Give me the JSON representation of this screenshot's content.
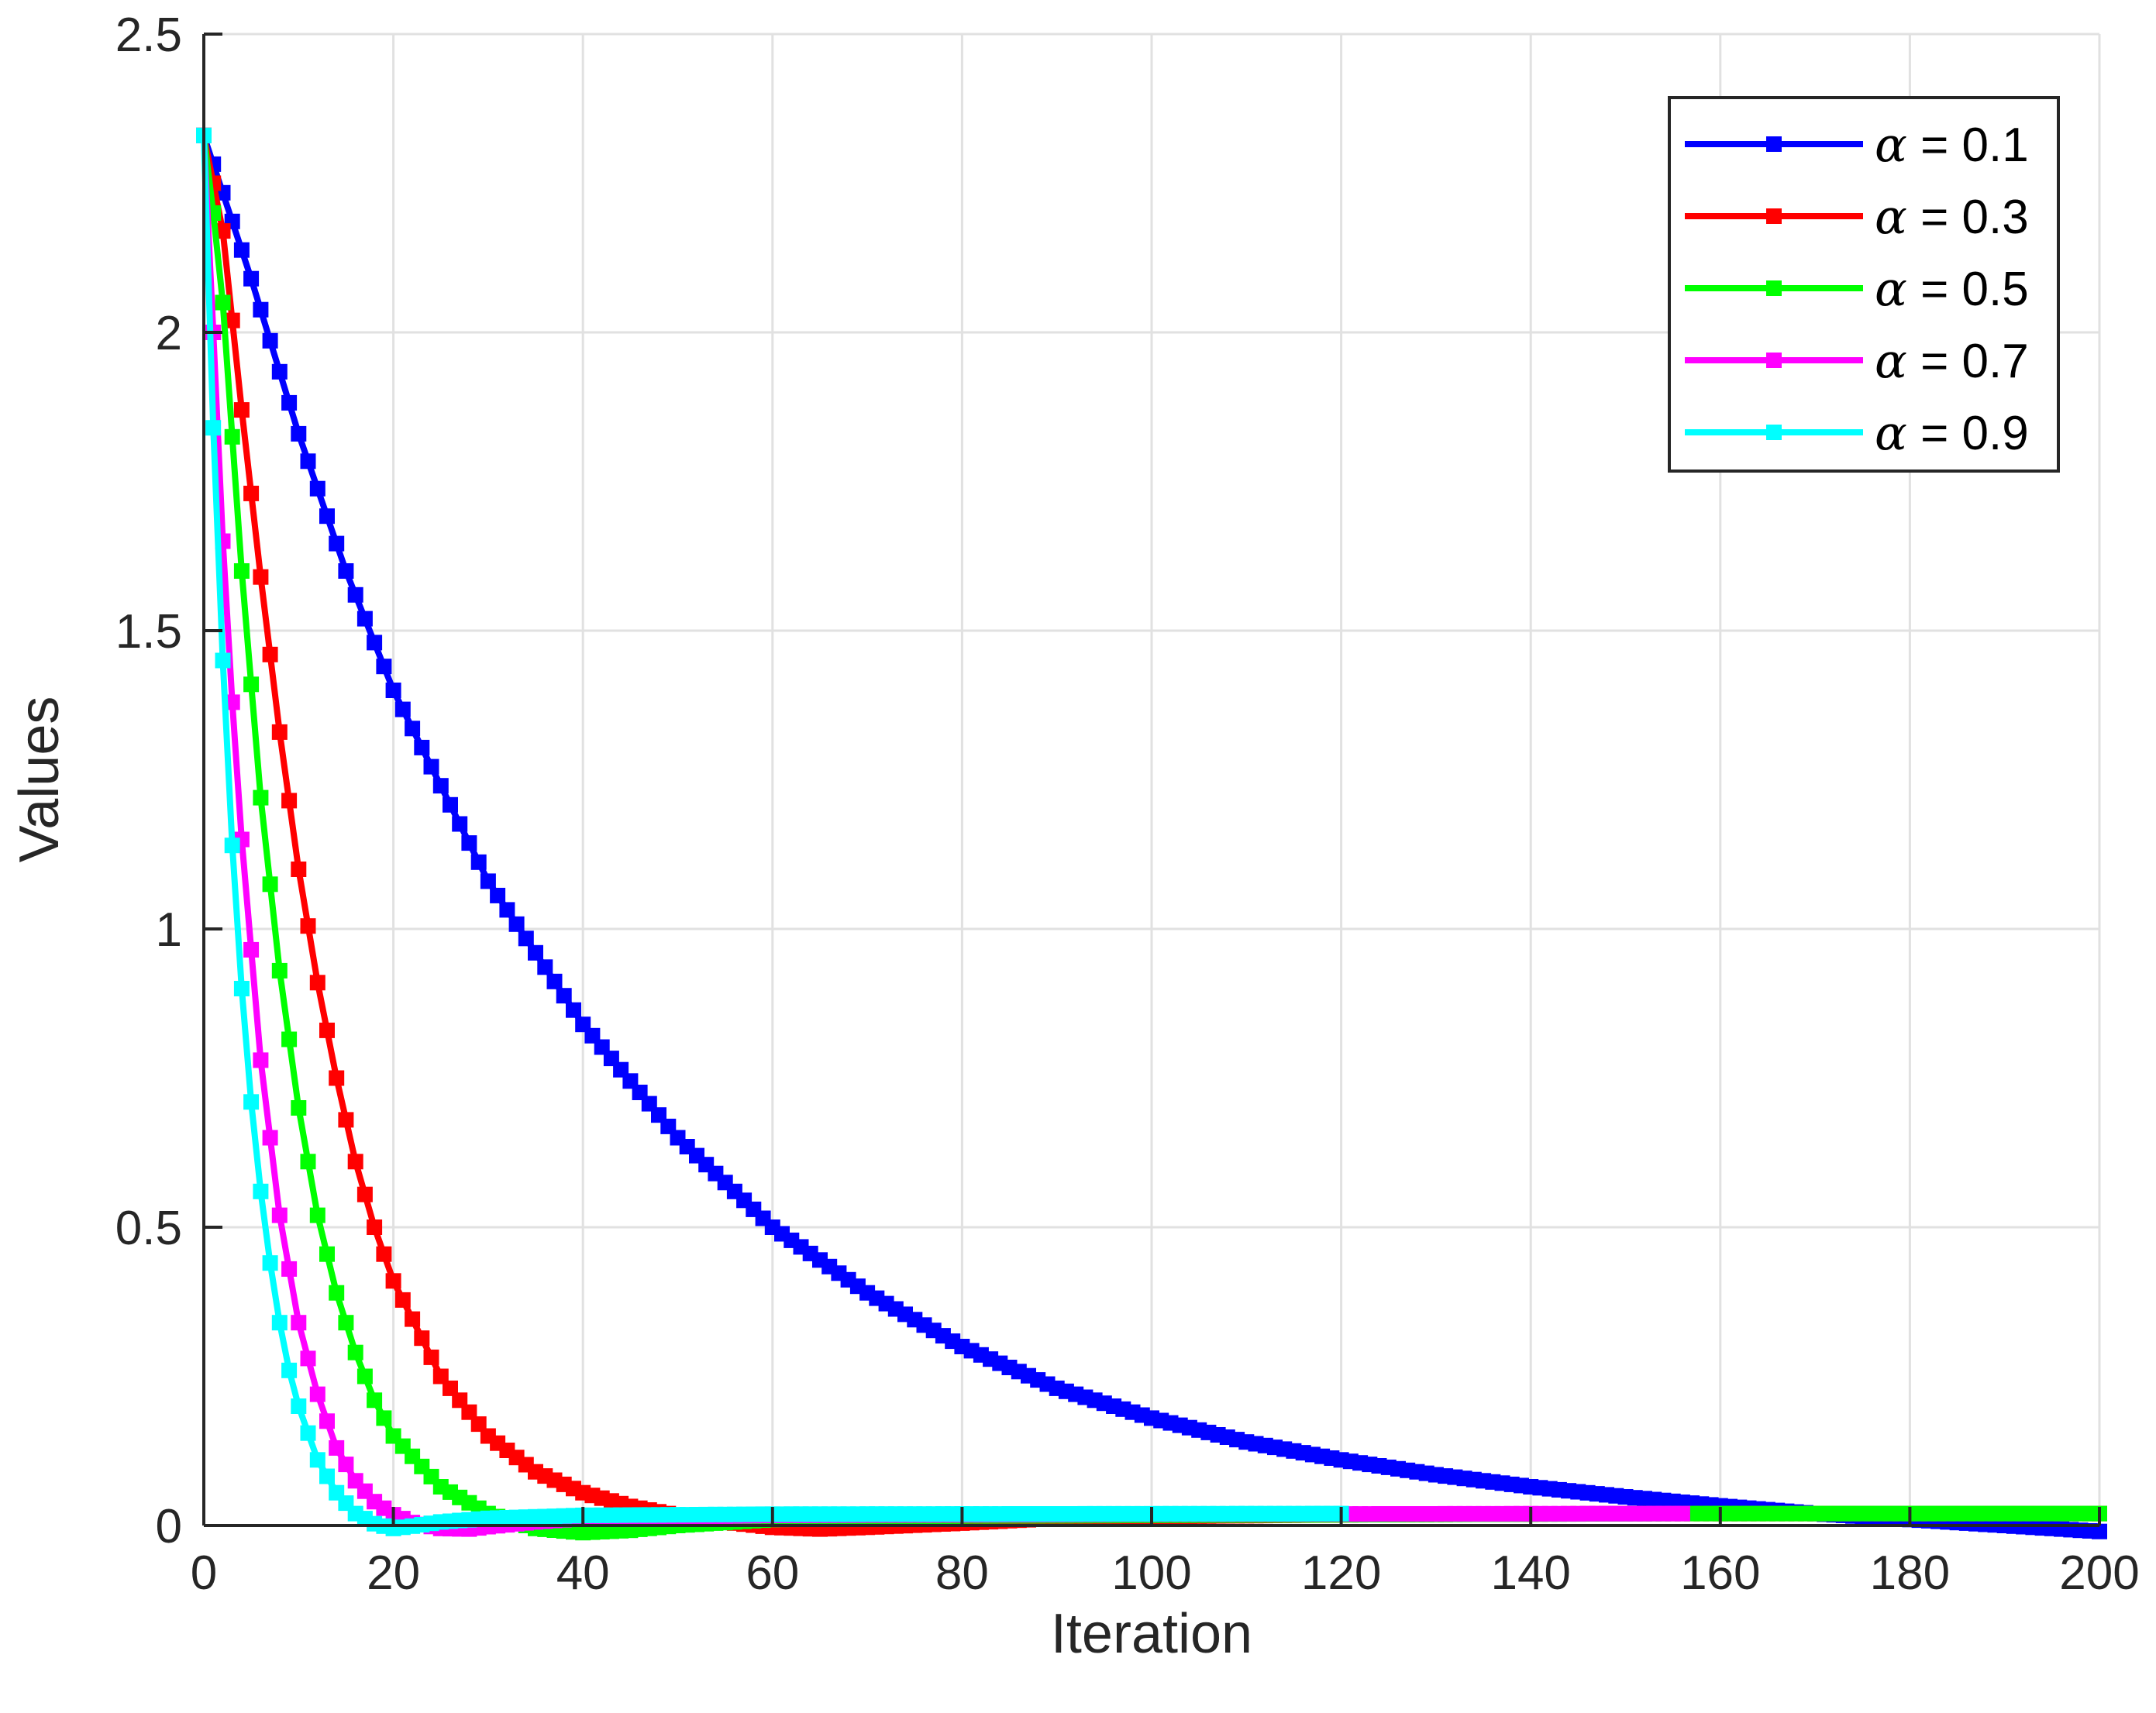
{
  "chart_data": {
    "type": "line",
    "title": "",
    "xlabel": "Iteration",
    "ylabel": "Values",
    "xlim": [
      0,
      200
    ],
    "ylim": [
      0,
      2.5
    ],
    "xticks": [
      0,
      20,
      40,
      60,
      80,
      100,
      120,
      140,
      160,
      180,
      200
    ],
    "xtick_labels": [
      "0",
      "20",
      "40",
      "60",
      "80",
      "100",
      "120",
      "140",
      "160",
      "180",
      "200"
    ],
    "yticks": [
      0,
      0.5,
      1,
      1.5,
      2,
      2.5
    ],
    "ytick_labels": [
      "0",
      "0.5",
      "1",
      "1.5",
      "2",
      "2.5"
    ],
    "grid": true,
    "legend_position": "top-right",
    "series": [
      {
        "name": "α = 0.1",
        "symbol": "α",
        "label_suffix": " = 0.1",
        "color": "#0000ff",
        "marker": "square",
        "x": [
          0,
          5,
          10,
          15,
          20,
          30,
          40,
          50,
          60,
          70,
          80,
          90,
          100,
          110,
          120,
          130,
          140,
          150,
          160,
          170,
          180,
          190,
          200
        ],
        "y": [
          2.33,
          2.09,
          1.83,
          1.6,
          1.4,
          1.08,
          0.84,
          0.65,
          0.5,
          0.39,
          0.3,
          0.23,
          0.18,
          0.14,
          0.11,
          0.085,
          0.065,
          0.048,
          0.033,
          0.02,
          0.01,
          0.0,
          -0.01
        ]
      },
      {
        "name": "α = 0.3",
        "symbol": "α",
        "label_suffix": " = 0.3",
        "color": "#ff0000",
        "marker": "square",
        "x": [
          0,
          2,
          4,
          6,
          8,
          10,
          12,
          14,
          16,
          18,
          20,
          25,
          30,
          35,
          40,
          45,
          50,
          55,
          60,
          65,
          70,
          80,
          90,
          100,
          120,
          150,
          200
        ],
        "y": [
          2.33,
          2.17,
          1.87,
          1.59,
          1.33,
          1.1,
          0.91,
          0.75,
          0.61,
          0.5,
          0.41,
          0.25,
          0.15,
          0.09,
          0.055,
          0.032,
          0.017,
          0.006,
          -0.003,
          -0.006,
          -0.003,
          0.004,
          0.012,
          0.015,
          0.018,
          0.02,
          0.02
        ]
      },
      {
        "name": "α = 0.5",
        "symbol": "α",
        "label_suffix": " = 0.5",
        "color": "#00ff00",
        "marker": "square",
        "x": [
          0,
          1,
          2,
          4,
          6,
          8,
          10,
          12,
          14,
          16,
          18,
          20,
          25,
          30,
          35,
          40,
          45,
          50,
          60,
          80,
          120,
          156,
          200
        ],
        "y": [
          2.33,
          2.2,
          2.05,
          1.6,
          1.22,
          0.93,
          0.7,
          0.52,
          0.39,
          0.29,
          0.21,
          0.15,
          0.065,
          0.02,
          -0.005,
          -0.012,
          -0.008,
          0.0,
          0.01,
          0.016,
          0.018,
          0.02,
          0.02
        ]
      },
      {
        "name": "α = 0.7",
        "symbol": "α",
        "label_suffix": " = 0.7",
        "color": "#ff00ff",
        "marker": "square",
        "x": [
          0,
          1,
          2,
          3,
          4,
          6,
          8,
          10,
          12,
          14,
          16,
          18,
          20,
          22,
          25,
          28,
          30,
          35,
          40,
          60,
          100,
          156
        ],
        "y": [
          2.33,
          2.0,
          1.65,
          1.38,
          1.15,
          0.78,
          0.52,
          0.34,
          0.22,
          0.13,
          0.075,
          0.04,
          0.018,
          0.005,
          -0.005,
          -0.006,
          -0.002,
          0.006,
          0.012,
          0.017,
          0.019,
          0.02
        ]
      },
      {
        "name": "α = 0.9",
        "symbol": "α",
        "label_suffix": " = 0.9",
        "color": "#00ffff",
        "marker": "square",
        "x": [
          0,
          1,
          2,
          3,
          4,
          5,
          6,
          7,
          8,
          9,
          10,
          12,
          14,
          16,
          18,
          20,
          22,
          25,
          30,
          40,
          60,
          120
        ],
        "y": [
          2.33,
          1.84,
          1.45,
          1.14,
          0.9,
          0.71,
          0.56,
          0.44,
          0.34,
          0.26,
          0.2,
          0.11,
          0.055,
          0.02,
          0.003,
          -0.005,
          -0.001,
          0.006,
          0.012,
          0.017,
          0.019,
          0.02
        ]
      }
    ]
  }
}
